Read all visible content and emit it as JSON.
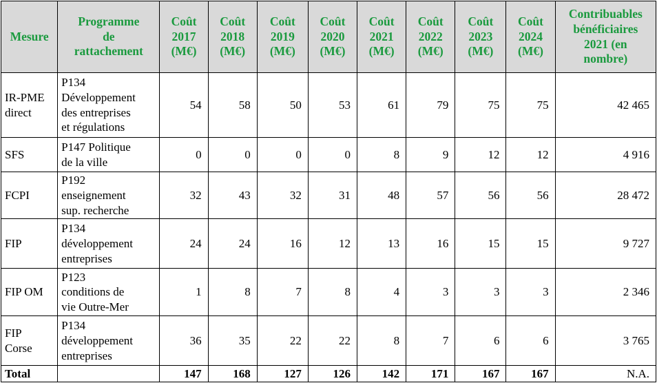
{
  "colors": {
    "header_text": "#1a9a3e",
    "header_bg": "#d9d9d9",
    "body_text": "#000000",
    "border": "#000000"
  },
  "table": {
    "columns": [
      {
        "id": "mesure",
        "label": "Mesure"
      },
      {
        "id": "programme",
        "label": "Programme\nde\nrattachement"
      },
      {
        "id": "cout-2017",
        "label": "Coût\n2017\n(M€)"
      },
      {
        "id": "cout-2018",
        "label": "Coût\n2018\n(M€)"
      },
      {
        "id": "cout-2019",
        "label": "Coût\n2019\n(M€)"
      },
      {
        "id": "cout-2020",
        "label": "Coût\n2020\n(M€)"
      },
      {
        "id": "cout-2021",
        "label": "Coût\n2021\n(M€)"
      },
      {
        "id": "cout-2022",
        "label": "Coût\n2022\n(M€)"
      },
      {
        "id": "cout-2023",
        "label": "Coût\n2023\n(M€)"
      },
      {
        "id": "cout-2024",
        "label": "Coût\n2024\n(M€)"
      },
      {
        "id": "beneficiaires",
        "label": "Contribuables\nbénéficiaires\n2021 (en\nnombre)"
      }
    ],
    "rows": [
      {
        "mesure": "IR-PME\ndirect",
        "programme": "P134\nDéveloppement\ndes entreprises\net régulations",
        "costs": [
          54,
          58,
          50,
          53,
          61,
          79,
          75,
          75
        ],
        "beneficiaires": "42 465"
      },
      {
        "mesure": "SFS",
        "programme": "P147 Politique\nde la ville",
        "costs": [
          0,
          0,
          0,
          0,
          8,
          9,
          12,
          12
        ],
        "beneficiaires": "4 916"
      },
      {
        "mesure": "FCPI",
        "programme": "P192\nenseignement\nsup. recherche",
        "costs": [
          32,
          43,
          32,
          31,
          48,
          57,
          56,
          56
        ],
        "beneficiaires": "28 472"
      },
      {
        "mesure": "FIP",
        "programme": "P134\ndéveloppement\nentreprises",
        "costs": [
          24,
          24,
          16,
          12,
          13,
          16,
          15,
          15
        ],
        "beneficiaires": "9 727"
      },
      {
        "mesure": "FIP OM",
        "programme": "P123\nconditions de\nvie Outre-Mer",
        "costs": [
          1,
          8,
          7,
          8,
          4,
          3,
          3,
          3
        ],
        "beneficiaires": "2 346"
      },
      {
        "mesure": "FIP\nCorse",
        "programme": "P134\ndéveloppement\nentreprises",
        "costs": [
          36,
          35,
          22,
          22,
          8,
          7,
          6,
          6
        ],
        "beneficiaires": "3 765"
      }
    ],
    "total_row": {
      "mesure": "Total",
      "programme": "",
      "costs": [
        147,
        168,
        127,
        126,
        142,
        171,
        167,
        167
      ],
      "beneficiaires": "N.A."
    }
  }
}
